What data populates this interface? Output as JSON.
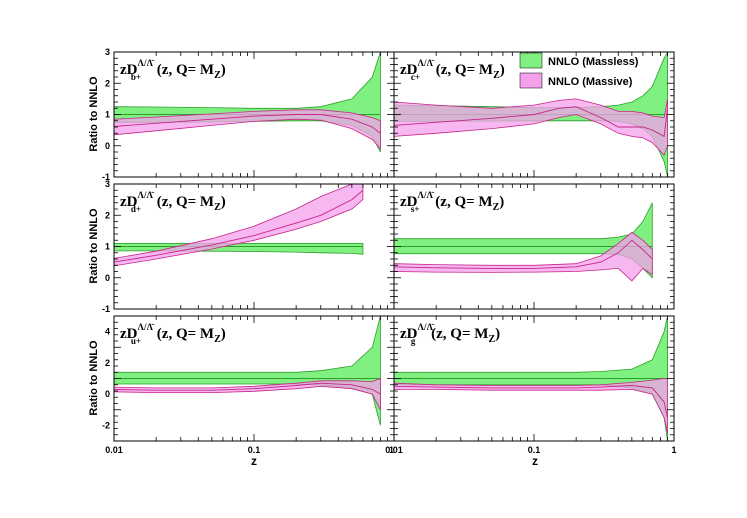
{
  "chart_data": {
    "type": "area",
    "title": "",
    "xlabel": "z",
    "ylabel": "Ratio to NNLO",
    "xscale": "log",
    "xlim": [
      0.01,
      1
    ],
    "x_ticks": [
      "0.01",
      "0.1",
      "1"
    ],
    "legend": {
      "position": "top-right",
      "entries": [
        {
          "name": "NNLO (Massless)",
          "color": "#80f080"
        },
        {
          "name": "NNLO (Massive)",
          "color": "#f4a0ec"
        }
      ]
    },
    "panels": [
      {
        "id": "b",
        "title": "zD",
        "sub": "b+",
        "sup": "Λ/Λ̄",
        "suffix": "(z, Q= M",
        "suffix_sub": "Z",
        "close": ")",
        "ylim": [
          -1,
          3
        ],
        "y_ticks": [
          "3",
          "2",
          "1",
          "0",
          "-1"
        ],
        "x": [
          0.01,
          0.02,
          0.05,
          0.1,
          0.2,
          0.3,
          0.5,
          0.7,
          0.8
        ],
        "series": [
          {
            "name": "NNLO (Massless)",
            "center": [
              1,
              1,
              1,
              1,
              1,
              1,
              1,
              1,
              1
            ],
            "lower": [
              0.75,
              0.75,
              0.76,
              0.78,
              0.8,
              0.8,
              0.65,
              0.3,
              -0.2
            ],
            "upper": [
              1.25,
              1.24,
              1.22,
              1.2,
              1.2,
              1.25,
              1.5,
              2.2,
              3.0
            ]
          },
          {
            "name": "NNLO (Massive)",
            "center": [
              0.62,
              0.72,
              0.85,
              0.95,
              1.0,
              1.0,
              0.85,
              0.6,
              0.4
            ],
            "lower": [
              0.35,
              0.48,
              0.65,
              0.78,
              0.85,
              0.82,
              0.55,
              0.2,
              -0.1
            ],
            "upper": [
              0.85,
              0.92,
              1.02,
              1.1,
              1.15,
              1.15,
              1.05,
              0.9,
              0.8
            ]
          }
        ]
      },
      {
        "id": "c",
        "title": "zD",
        "sub": "c+",
        "sup": "Λ/Λ̄",
        "suffix": "(z, Q= M",
        "suffix_sub": "Z",
        "close": ")",
        "ylim": [
          -1,
          3
        ],
        "y_ticks": [],
        "x": [
          0.01,
          0.02,
          0.05,
          0.1,
          0.15,
          0.2,
          0.3,
          0.4,
          0.5,
          0.6,
          0.7,
          0.85,
          0.9
        ],
        "series": [
          {
            "name": "NNLO (Massless)",
            "center": [
              1,
              1,
              1,
              1,
              1,
              1,
              1,
              1,
              1,
              1,
              1,
              1,
              1
            ],
            "lower": [
              0.78,
              0.78,
              0.79,
              0.8,
              0.8,
              0.8,
              0.8,
              0.78,
              0.7,
              0.55,
              0.3,
              -0.5,
              -1.0
            ],
            "upper": [
              1.3,
              1.28,
              1.25,
              1.22,
              1.22,
              1.22,
              1.25,
              1.3,
              1.4,
              1.6,
              1.9,
              2.8,
              3.0
            ]
          },
          {
            "name": "NNLO (Massive)",
            "center": [
              0.65,
              0.75,
              0.88,
              1.0,
              1.2,
              1.25,
              0.9,
              0.6,
              0.6,
              0.6,
              0.5,
              0.3,
              1.2
            ],
            "lower": [
              0.3,
              0.4,
              0.55,
              0.7,
              0.9,
              1.0,
              0.7,
              0.4,
              0.3,
              0.25,
              0.1,
              -0.3,
              0.0
            ],
            "upper": [
              1.4,
              1.3,
              1.2,
              1.3,
              1.45,
              1.5,
              1.3,
              1.1,
              1.1,
              1.05,
              0.95,
              0.9,
              1.5
            ]
          }
        ]
      },
      {
        "id": "d",
        "title": "zD",
        "sub": "d+",
        "sup": "Λ/Λ̄",
        "suffix": "(z, Q= M",
        "suffix_sub": "Z",
        "close": ")",
        "ylim": [
          -1,
          3
        ],
        "y_ticks": [
          "3",
          "2",
          "1",
          "0",
          "-1"
        ],
        "x": [
          0.01,
          0.02,
          0.05,
          0.1,
          0.2,
          0.3,
          0.5,
          0.6
        ],
        "series": [
          {
            "name": "NNLO (Massless)",
            "center": [
              1,
              1,
              1,
              1,
              1,
              1,
              1,
              1
            ],
            "lower": [
              0.86,
              0.86,
              0.85,
              0.84,
              0.82,
              0.8,
              0.78,
              0.75
            ],
            "upper": [
              1.1,
              1.1,
              1.1,
              1.1,
              1.1,
              1.1,
              1.1,
              1.1
            ]
          },
          {
            "name": "NNLO (Massive)",
            "center": [
              0.5,
              0.72,
              1.05,
              1.35,
              1.75,
              2.0,
              2.5,
              2.8
            ],
            "lower": [
              0.38,
              0.6,
              0.92,
              1.2,
              1.55,
              1.8,
              2.2,
              2.5
            ],
            "upper": [
              0.62,
              0.85,
              1.25,
              1.65,
              2.2,
              2.6,
              3.0,
              3.0
            ]
          }
        ]
      },
      {
        "id": "s",
        "title": "zD",
        "sub": "s+",
        "sup": "Λ/Λ̄",
        "suffix": "(z, Q= M",
        "suffix_sub": "Z",
        "close": ")",
        "ylim": [
          -1,
          3
        ],
        "y_ticks": [],
        "x": [
          0.01,
          0.02,
          0.05,
          0.1,
          0.2,
          0.3,
          0.4,
          0.5,
          0.6,
          0.7
        ],
        "series": [
          {
            "name": "NNLO (Massless)",
            "center": [
              1,
              1,
              1,
              1,
              1,
              1,
              1,
              1,
              1,
              1
            ],
            "lower": [
              0.77,
              0.77,
              0.77,
              0.77,
              0.77,
              0.77,
              0.75,
              0.6,
              0.3,
              0.0
            ],
            "upper": [
              1.25,
              1.25,
              1.25,
              1.25,
              1.25,
              1.25,
              1.3,
              1.4,
              1.8,
              2.4
            ]
          },
          {
            "name": "NNLO (Massive)",
            "center": [
              0.35,
              0.32,
              0.3,
              0.3,
              0.35,
              0.5,
              0.8,
              1.2,
              0.9,
              0.6
            ],
            "lower": [
              0.2,
              0.18,
              0.17,
              0.18,
              0.2,
              0.25,
              0.3,
              -0.1,
              0.3,
              0.1
            ],
            "upper": [
              0.45,
              0.42,
              0.4,
              0.4,
              0.45,
              0.7,
              1.1,
              1.45,
              1.2,
              0.9
            ]
          }
        ]
      },
      {
        "id": "u",
        "title": "zD",
        "sub": "u+",
        "sup": "Λ/Λ̄",
        "suffix": "(z, Q= M",
        "suffix_sub": "Z",
        "close": ")",
        "ylim": [
          -3,
          5
        ],
        "y_ticks": [
          "4",
          "2",
          "0",
          "-2"
        ],
        "x": [
          0.01,
          0.02,
          0.05,
          0.1,
          0.2,
          0.3,
          0.5,
          0.7,
          0.8
        ],
        "series": [
          {
            "name": "NNLO (Massless)",
            "center": [
              1,
              1,
              1,
              1,
              1,
              1,
              1,
              1,
              1
            ],
            "lower": [
              0.65,
              0.65,
              0.65,
              0.65,
              0.65,
              0.6,
              0.4,
              0.0,
              -2.0
            ],
            "upper": [
              1.4,
              1.4,
              1.4,
              1.4,
              1.4,
              1.5,
              1.8,
              3.0,
              5.0
            ]
          },
          {
            "name": "NNLO (Massive)",
            "center": [
              0.3,
              0.25,
              0.25,
              0.35,
              0.55,
              0.7,
              0.6,
              0.3,
              0.0
            ],
            "lower": [
              0.15,
              0.1,
              0.1,
              0.18,
              0.35,
              0.5,
              0.35,
              0.0,
              -1.0
            ],
            "upper": [
              0.45,
              0.4,
              0.4,
              0.5,
              0.7,
              0.85,
              0.85,
              0.8,
              1.0
            ]
          }
        ]
      },
      {
        "id": "g",
        "title": "zD",
        "sub": "g",
        "sup": "Λ/Λ̄",
        "suffix": "(z, Q= M",
        "suffix_sub": "Z",
        "close": ")",
        "ylim": [
          -3,
          5
        ],
        "y_ticks": [],
        "x": [
          0.01,
          0.02,
          0.05,
          0.1,
          0.2,
          0.3,
          0.5,
          0.7,
          0.85,
          0.9
        ],
        "series": [
          {
            "name": "NNLO (Massless)",
            "center": [
              1,
              1,
              1,
              1,
              1,
              1,
              1,
              1,
              1,
              1
            ],
            "lower": [
              0.6,
              0.6,
              0.6,
              0.6,
              0.6,
              0.6,
              0.4,
              0.0,
              -1.5,
              -3.0
            ],
            "upper": [
              1.4,
              1.4,
              1.4,
              1.4,
              1.4,
              1.45,
              1.6,
              2.2,
              4.0,
              5.0
            ]
          },
          {
            "name": "NNLO (Massive)",
            "center": [
              0.5,
              0.45,
              0.4,
              0.4,
              0.4,
              0.45,
              0.55,
              0.4,
              -0.5,
              -1.5
            ],
            "lower": [
              0.3,
              0.3,
              0.25,
              0.25,
              0.25,
              0.25,
              0.3,
              0.0,
              -1.5,
              -2.5
            ],
            "upper": [
              0.7,
              0.6,
              0.55,
              0.55,
              0.55,
              0.6,
              0.75,
              0.9,
              1.0,
              1.0
            ]
          }
        ]
      }
    ]
  }
}
